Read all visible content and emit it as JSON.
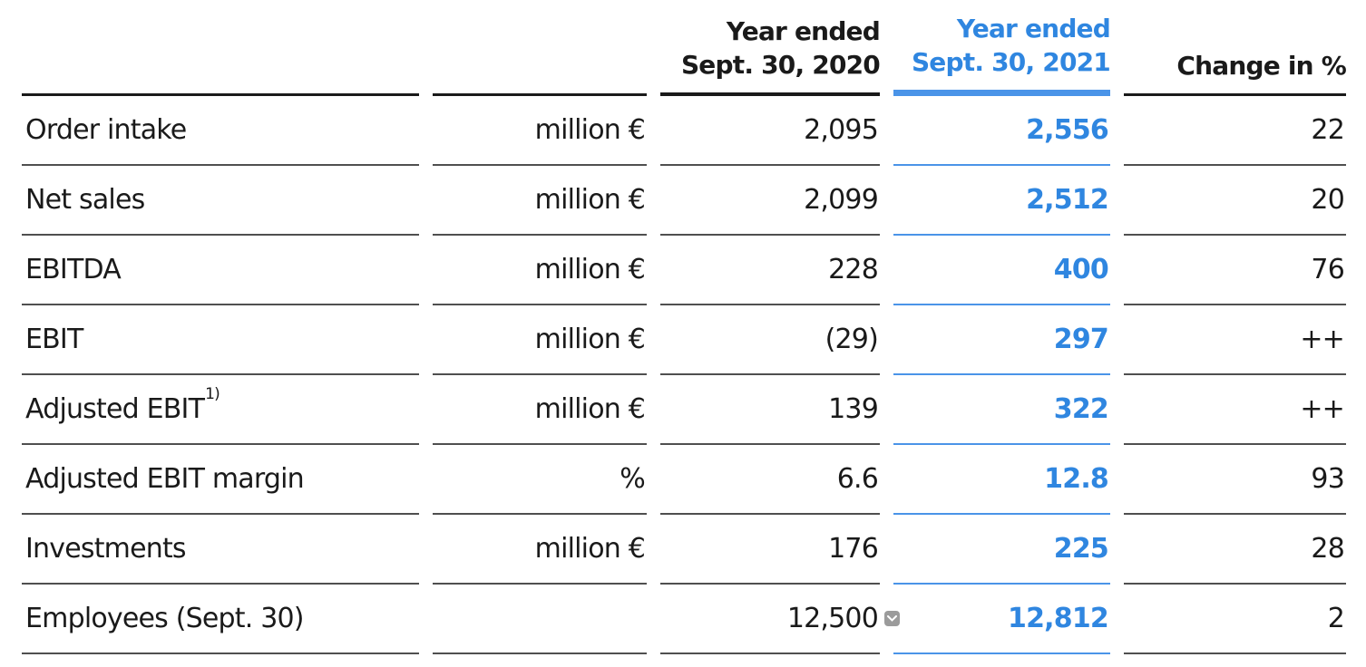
{
  "colors": {
    "accent_blue": "#2f86e0",
    "bar_blue": "#4a94e8",
    "text_black": "#1a1a1a",
    "rule_gray": "#4f4f4f",
    "marker_gray": "#9b9b9b"
  },
  "header": {
    "label_col": "",
    "unit_col": "",
    "col_2020": {
      "line1": "Year ended",
      "line2": "Sept. 30, 2020"
    },
    "col_2021": {
      "line1": "Year ended",
      "line2": "Sept. 30, 2021"
    },
    "col_change": "Change in %"
  },
  "rows": [
    {
      "label": "Order intake",
      "label_sup": "",
      "unit": "million €",
      "y2020": "2,095",
      "y2021": "2,556",
      "change": "22",
      "marker": false
    },
    {
      "label": "Net sales",
      "label_sup": "",
      "unit": "million €",
      "y2020": "2,099",
      "y2021": "2,512",
      "change": "20",
      "marker": false
    },
    {
      "label": "EBITDA",
      "label_sup": "",
      "unit": "million €",
      "y2020": "228",
      "y2021": "400",
      "change": "76",
      "marker": false
    },
    {
      "label": "EBIT",
      "label_sup": "",
      "unit": "million €",
      "y2020": "(29)",
      "y2021": "297",
      "change": "++",
      "marker": false
    },
    {
      "label": "Adjusted EBIT",
      "label_sup": "1)",
      "unit": "million €",
      "y2020": "139",
      "y2021": "322",
      "change": "++",
      "marker": false
    },
    {
      "label": "Adjusted EBIT margin",
      "label_sup": "",
      "unit": "%",
      "y2020": "6.6",
      "y2021": "12.8",
      "change": "93",
      "marker": false
    },
    {
      "label": "Investments",
      "label_sup": "",
      "unit": "million €",
      "y2020": "176",
      "y2021": "225",
      "change": "28",
      "marker": false
    },
    {
      "label": "Employees (Sept. 30)",
      "label_sup": "",
      "unit": "",
      "y2020": "12,500",
      "y2021": "12,812",
      "change": "2",
      "marker": true
    }
  ],
  "icons": {
    "marker": "chevron-down"
  }
}
